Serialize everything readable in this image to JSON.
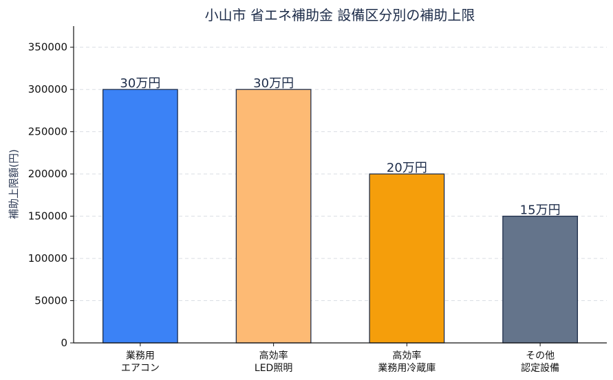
{
  "chart_data": {
    "type": "bar",
    "title": "小山市 省エネ補助金 設備区分別の補助上限",
    "xlabel": "",
    "ylabel": "補助上限額(円)",
    "ylim": [
      0,
      375000
    ],
    "yticks": [
      0,
      50000,
      100000,
      150000,
      200000,
      250000,
      300000,
      350000
    ],
    "grid": "horizontal dashed",
    "categories": [
      [
        "業務用",
        "エアコン"
      ],
      [
        "高効率",
        "LED照明"
      ],
      [
        "高効率",
        "業務用冷蔵庫"
      ],
      [
        "その他",
        "認定設備"
      ]
    ],
    "values": [
      300000,
      300000,
      200000,
      150000
    ],
    "data_labels": [
      "30万円",
      "30万円",
      "20万円",
      "15万円"
    ],
    "colors": [
      "#3b82f6",
      "#fdba74",
      "#f59e0b",
      "#64748b"
    ],
    "edge_color": "#1e2d4a"
  }
}
